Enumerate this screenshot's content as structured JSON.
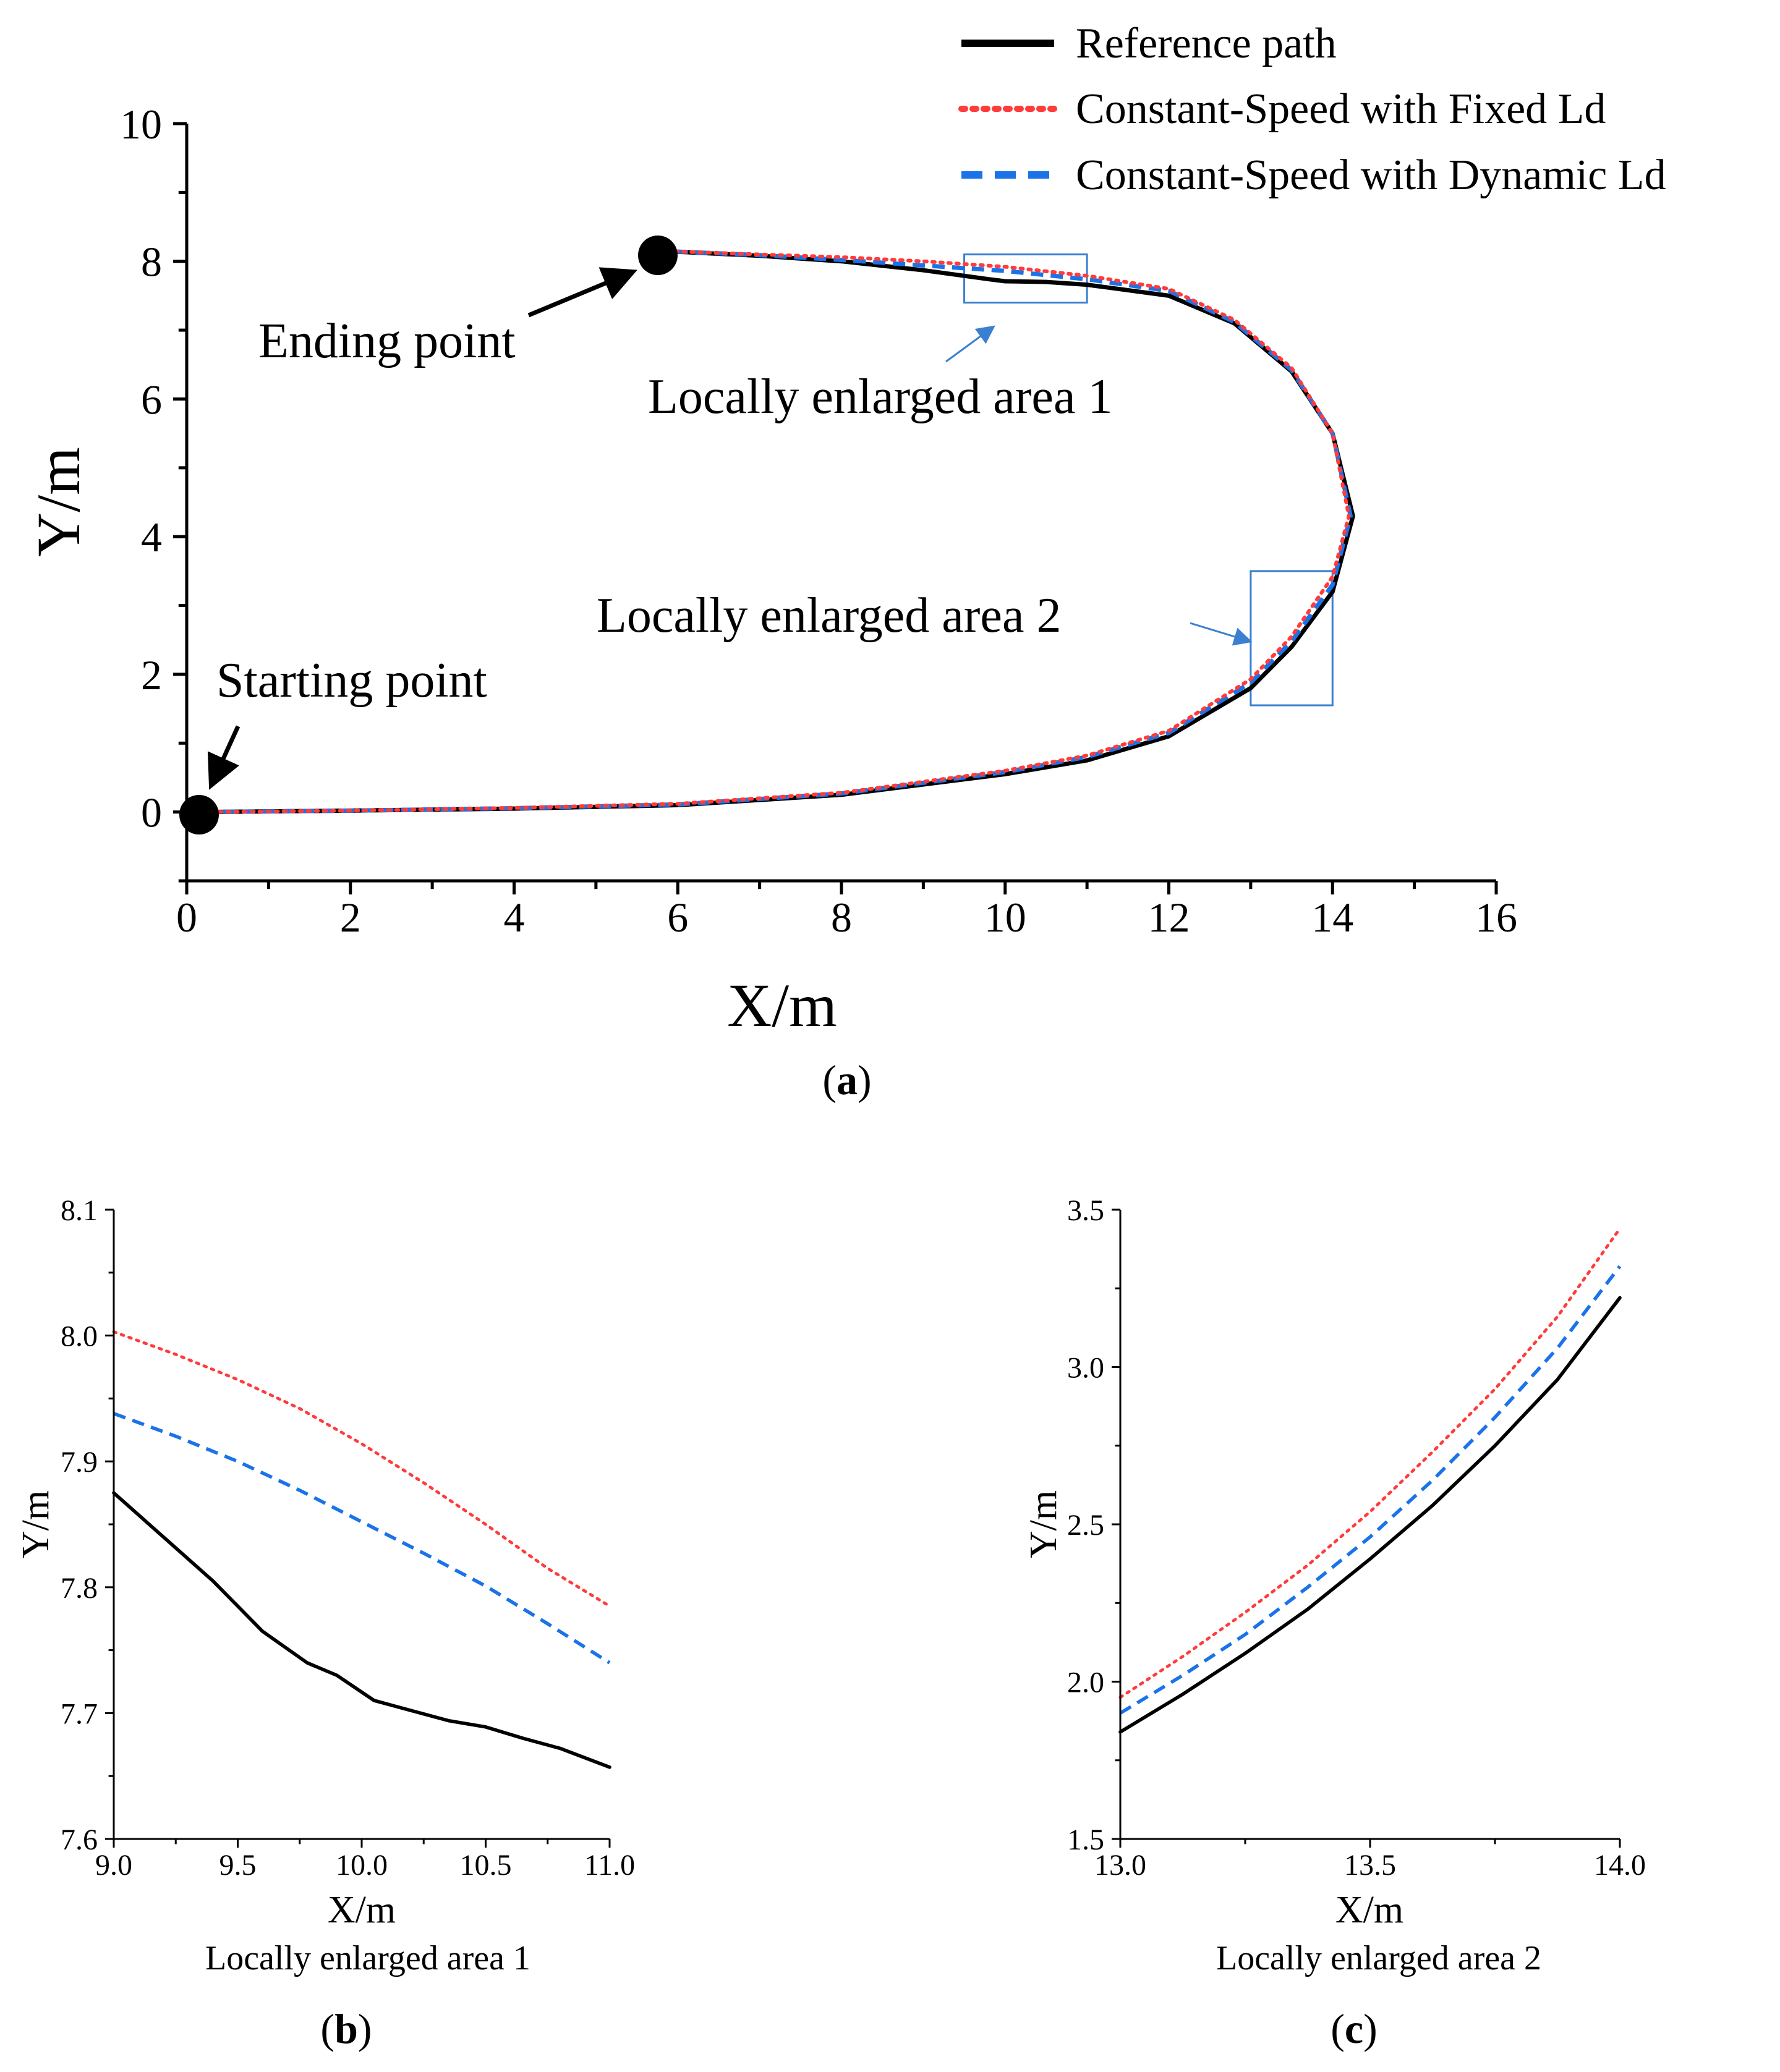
{
  "legend": [
    {
      "label": "Reference path",
      "series": "reference"
    },
    {
      "label": "Constant-Speed with Fixed Ld",
      "series": "fixed"
    },
    {
      "label": "Constant-Speed with Dynamic Ld",
      "series": "dynamic"
    }
  ],
  "colors": {
    "reference": "#000000",
    "fixed": "#ff3b3b",
    "dynamic": "#1a73e8",
    "box": "#3a7fd0"
  },
  "panels": {
    "a": "a",
    "b": "b",
    "c": "c"
  },
  "annotations": {
    "ending": "Ending point",
    "starting": "Starting point",
    "area1": "Locally enlarged area 1",
    "area2": "Locally enlarged area 2"
  },
  "chart_data": [
    {
      "id": "a",
      "type": "line",
      "xlabel": "X/m",
      "ylabel": "Y/m",
      "xlim": [
        0,
        16
      ],
      "ylim": [
        -1,
        10
      ],
      "xticks": [
        "0",
        "2",
        "4",
        "6",
        "8",
        "10",
        "12",
        "14",
        "16"
      ],
      "yticks": [
        "0",
        "2",
        "4",
        "6",
        "8",
        "10"
      ],
      "start_point": [
        0.2,
        0.0
      ],
      "end_point": [
        5.8,
        8.15
      ],
      "enlarged_boxes": [
        {
          "label": "Locally enlarged area 1",
          "x": [
            9.5,
            11.0
          ],
          "y": [
            7.4,
            8.1
          ]
        },
        {
          "label": "Locally enlarged area 2",
          "x": [
            13.0,
            14.0
          ],
          "y": [
            1.55,
            3.5
          ]
        }
      ],
      "series": [
        {
          "name": "Reference path",
          "key": "reference",
          "points": [
            [
              0.2,
              0.0
            ],
            [
              2,
              0.02
            ],
            [
              4,
              0.05
            ],
            [
              6,
              0.1
            ],
            [
              8,
              0.25
            ],
            [
              10,
              0.55
            ],
            [
              11,
              0.75
            ],
            [
              12,
              1.1
            ],
            [
              13,
              1.8
            ],
            [
              13.5,
              2.4
            ],
            [
              14,
              3.2
            ],
            [
              14.25,
              4.3
            ],
            [
              14,
              5.5
            ],
            [
              13.5,
              6.4
            ],
            [
              12.8,
              7.1
            ],
            [
              12,
              7.5
            ],
            [
              11,
              7.66
            ],
            [
              10.5,
              7.7
            ],
            [
              10,
              7.71
            ],
            [
              9.8,
              7.74
            ],
            [
              9,
              7.87
            ],
            [
              8,
              8.0
            ],
            [
              7,
              8.08
            ],
            [
              5.8,
              8.15
            ]
          ]
        },
        {
          "name": "Constant-Speed with Fixed Ld",
          "key": "fixed",
          "points": [
            [
              0.2,
              0.0
            ],
            [
              2,
              0.02
            ],
            [
              4,
              0.06
            ],
            [
              6,
              0.12
            ],
            [
              8,
              0.28
            ],
            [
              10,
              0.6
            ],
            [
              11,
              0.82
            ],
            [
              12,
              1.18
            ],
            [
              13,
              1.93
            ],
            [
              13.5,
              2.55
            ],
            [
              14,
              3.42
            ],
            [
              14.2,
              4.3
            ],
            [
              14,
              5.5
            ],
            [
              13.5,
              6.45
            ],
            [
              12.8,
              7.15
            ],
            [
              12,
              7.6
            ],
            [
              11,
              7.79
            ],
            [
              10,
              7.92
            ],
            [
              9,
              8.0
            ],
            [
              8,
              8.06
            ],
            [
              7,
              8.1
            ],
            [
              5.8,
              8.15
            ]
          ]
        },
        {
          "name": "Constant-Speed with Dynamic Ld",
          "key": "dynamic",
          "points": [
            [
              0.2,
              0.0
            ],
            [
              2,
              0.02
            ],
            [
              4,
              0.055
            ],
            [
              6,
              0.11
            ],
            [
              8,
              0.27
            ],
            [
              10,
              0.58
            ],
            [
              11,
              0.8
            ],
            [
              12,
              1.15
            ],
            [
              13,
              1.88
            ],
            [
              13.5,
              2.48
            ],
            [
              14,
              3.3
            ],
            [
              14.22,
              4.3
            ],
            [
              14,
              5.5
            ],
            [
              13.5,
              6.42
            ],
            [
              12.8,
              7.12
            ],
            [
              12,
              7.57
            ],
            [
              11,
              7.74
            ],
            [
              10,
              7.86
            ],
            [
              9,
              7.94
            ],
            [
              8,
              8.02
            ],
            [
              7,
              8.09
            ],
            [
              5.8,
              8.15
            ]
          ]
        }
      ]
    },
    {
      "id": "b",
      "type": "line",
      "title": "Locally enlarged area 1",
      "xlabel": "X/m",
      "ylabel": "Y/m",
      "xlim": [
        9.0,
        11.0
      ],
      "ylim": [
        7.6,
        8.1
      ],
      "xticks": [
        "9.0",
        "9.5",
        "10.0",
        "10.5",
        "11.0"
      ],
      "yticks": [
        "7.6",
        "7.7",
        "7.8",
        "7.9",
        "8.0",
        "8.1"
      ],
      "series": [
        {
          "name": "Reference path",
          "key": "reference",
          "points": [
            [
              9.0,
              7.875
            ],
            [
              9.2,
              7.84
            ],
            [
              9.4,
              7.805
            ],
            [
              9.6,
              7.765
            ],
            [
              9.78,
              7.74
            ],
            [
              9.9,
              7.73
            ],
            [
              10.05,
              7.71
            ],
            [
              10.2,
              7.702
            ],
            [
              10.35,
              7.694
            ],
            [
              10.5,
              7.689
            ],
            [
              10.65,
              7.68
            ],
            [
              10.8,
              7.672
            ],
            [
              11.0,
              7.657
            ]
          ]
        },
        {
          "name": "Constant-Speed with Fixed Ld",
          "key": "fixed",
          "points": [
            [
              9.0,
              8.003
            ],
            [
              9.25,
              7.985
            ],
            [
              9.5,
              7.965
            ],
            [
              9.75,
              7.942
            ],
            [
              10.0,
              7.914
            ],
            [
              10.25,
              7.883
            ],
            [
              10.5,
              7.85
            ],
            [
              10.75,
              7.815
            ],
            [
              11.0,
              7.785
            ]
          ]
        },
        {
          "name": "Constant-Speed with Dynamic Ld",
          "key": "dynamic",
          "points": [
            [
              9.0,
              7.938
            ],
            [
              9.25,
              7.92
            ],
            [
              9.5,
              7.9
            ],
            [
              9.75,
              7.877
            ],
            [
              10.0,
              7.852
            ],
            [
              10.25,
              7.827
            ],
            [
              10.5,
              7.801
            ],
            [
              10.75,
              7.771
            ],
            [
              11.0,
              7.74
            ]
          ]
        }
      ]
    },
    {
      "id": "c",
      "type": "line",
      "title": "Locally enlarged area 2",
      "xlabel": "X/m",
      "ylabel": "Y/m",
      "xlim": [
        13.0,
        14.0
      ],
      "ylim": [
        1.5,
        3.5
      ],
      "xticks": [
        "13.0",
        "13.5",
        "14.0"
      ],
      "yticks": [
        "1.5",
        "2.0",
        "2.5",
        "3.0",
        "3.5"
      ],
      "series": [
        {
          "name": "Reference path",
          "key": "reference",
          "points": [
            [
              13.0,
              1.84
            ],
            [
              13.125,
              1.96
            ],
            [
              13.25,
              2.09
            ],
            [
              13.375,
              2.23
            ],
            [
              13.5,
              2.39
            ],
            [
              13.625,
              2.56
            ],
            [
              13.75,
              2.75
            ],
            [
              13.875,
              2.96
            ],
            [
              14.0,
              3.22
            ]
          ]
        },
        {
          "name": "Constant-Speed with Fixed Ld",
          "key": "fixed",
          "points": [
            [
              13.0,
              1.95
            ],
            [
              13.125,
              2.08
            ],
            [
              13.25,
              2.22
            ],
            [
              13.375,
              2.37
            ],
            [
              13.5,
              2.54
            ],
            [
              13.625,
              2.73
            ],
            [
              13.75,
              2.93
            ],
            [
              13.875,
              3.16
            ],
            [
              14.0,
              3.44
            ]
          ]
        },
        {
          "name": "Constant-Speed with Dynamic Ld",
          "key": "dynamic",
          "points": [
            [
              13.0,
              1.9
            ],
            [
              13.125,
              2.02
            ],
            [
              13.25,
              2.15
            ],
            [
              13.375,
              2.3
            ],
            [
              13.5,
              2.46
            ],
            [
              13.625,
              2.64
            ],
            [
              13.75,
              2.84
            ],
            [
              13.875,
              3.06
            ],
            [
              14.0,
              3.32
            ]
          ]
        }
      ]
    }
  ]
}
